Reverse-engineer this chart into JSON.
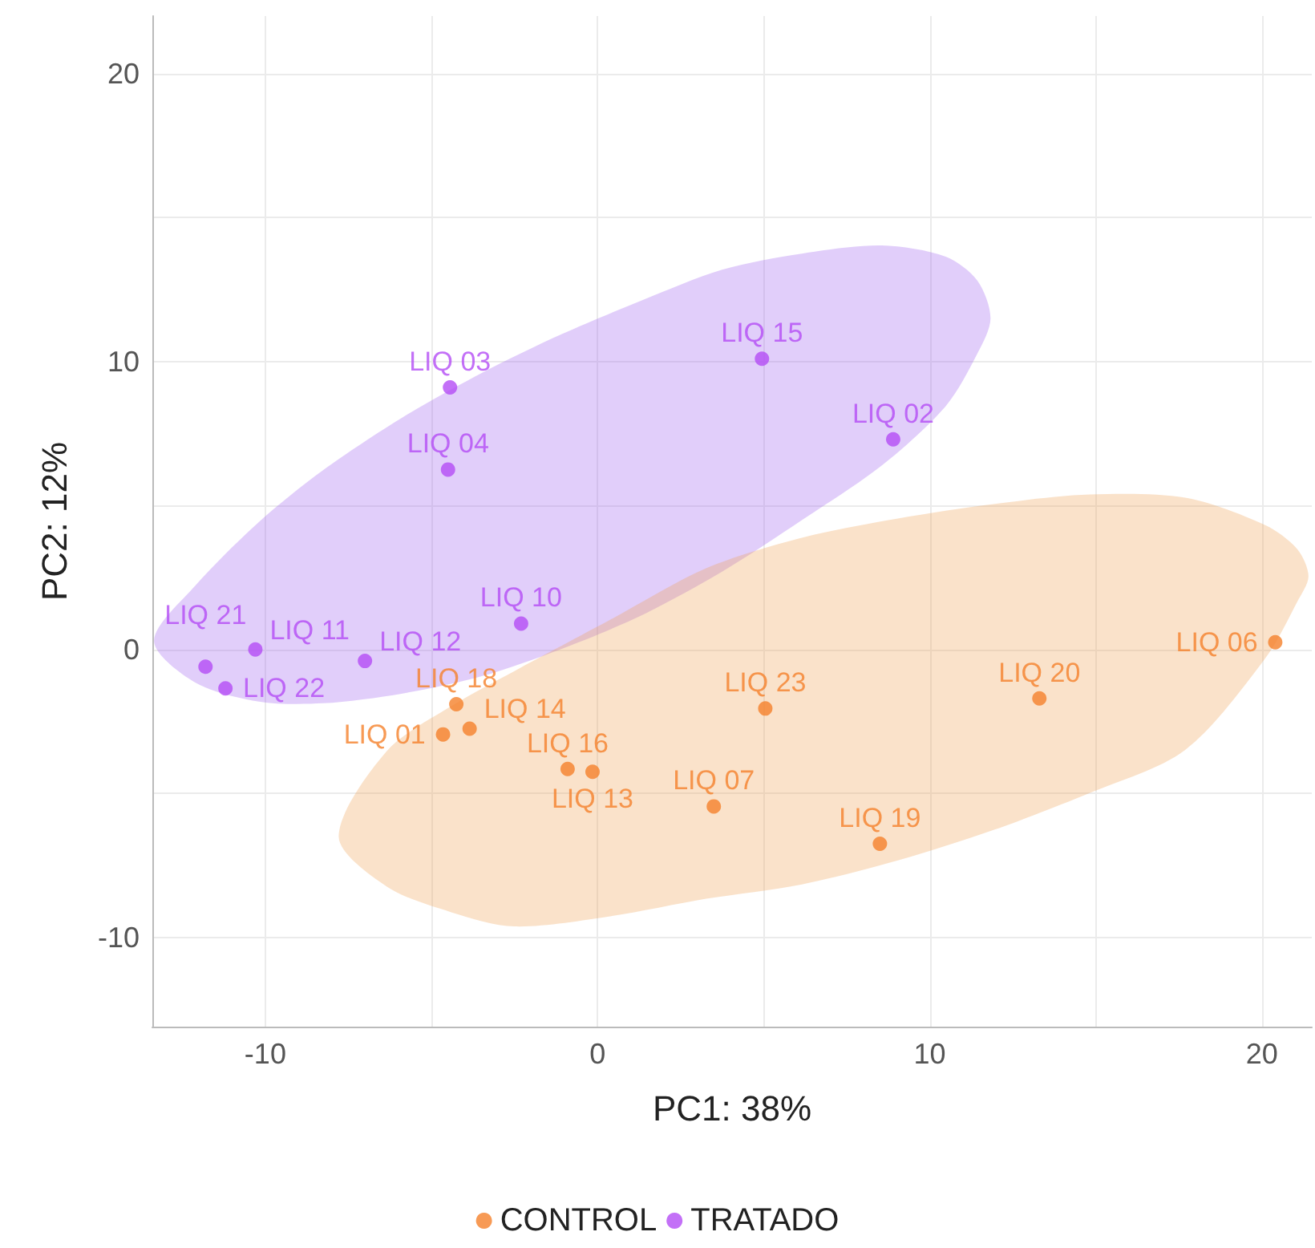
{
  "chart_data": {
    "type": "scatter",
    "xlabel": "PC1: 38%",
    "ylabel": "PC2: 12%",
    "xlim": [
      -13.4,
      21.5
    ],
    "ylim": [
      -13.1,
      22
    ],
    "xticks": [
      -10,
      {
        "value": -5,
        "label": null
      },
      0,
      {
        "value": 5,
        "label": null
      },
      10,
      {
        "value": 15,
        "label": null
      },
      20
    ],
    "yticks": [
      -10,
      {
        "value": -5,
        "label": null
      },
      0,
      {
        "value": 5,
        "label": null
      },
      10,
      {
        "value": 15,
        "label": null
      },
      20
    ],
    "grid": true,
    "legend": "bottom",
    "marker": "circle",
    "series": [
      {
        "type": "area",
        "marker": "none",
        "color": "#9a5cf0",
        "x": [
          -13.35,
          -12.12,
          -10.19,
          -8.27,
          -5.87,
          -3.46,
          -1.06,
          1.35,
          3.75,
          6.15,
          8.56,
          10.48,
          11.44,
          11.83,
          11.44,
          10.48,
          8.56,
          6.15,
          3.75,
          1.35,
          -1.06,
          -3.46,
          -5.87,
          -8.27,
          -10.19,
          -12.12
        ],
        "values": [
          0.3,
          2.2,
          4.43,
          6.22,
          8.06,
          9.62,
          10.96,
          12.13,
          13.19,
          13.75,
          14.03,
          13.64,
          12.8,
          11.5,
          10.29,
          8.45,
          6.39,
          4.49,
          2.7,
          1.2,
          0.03,
          -0.92,
          -1.53,
          -1.87,
          -1.81,
          -1.14
        ]
      },
      {
        "type": "area",
        "marker": "none",
        "color": "#f0a050",
        "x": [
          -7.79,
          -6.35,
          -4.42,
          -2.5,
          0.38,
          3.27,
          6.15,
          9.04,
          11.92,
          14.81,
          17.69,
          20.1,
          21.06,
          21.4,
          21.06,
          20.1,
          17.69,
          14.81,
          11.92,
          9.04,
          6.15,
          3.27,
          0.38,
          -2.5,
          -4.42,
          -6.35
        ],
        "values": [
          -6.5,
          -3.54,
          -1.98,
          -0.75,
          1.03,
          2.82,
          3.88,
          4.55,
          5.05,
          5.38,
          5.27,
          4.32,
          3.49,
          2.54,
          1.65,
          -0.31,
          -3.49,
          -4.99,
          -6.27,
          -7.33,
          -8.16,
          -8.66,
          -9.27,
          -9.62,
          -9.12,
          -8.23
        ]
      },
      {
        "name": "CONTROL",
        "color": "#f5812a",
        "x": [
          -4.25,
          -3.85,
          -4.65,
          -0.9,
          -0.15,
          3.5,
          5.05,
          8.5,
          13.3,
          20.4
        ],
        "values": [
          -1.9,
          -2.75,
          -2.95,
          -4.15,
          -4.25,
          -5.45,
          -2.05,
          -6.75,
          -1.7,
          0.25
        ],
        "value_labels": [
          "LIQ 18",
          "LIQ 14",
          "LIQ 01",
          "LIQ 16",
          "LIQ 13",
          "LIQ 07",
          "LIQ 23",
          "LIQ 19",
          "LIQ 20",
          "LIQ 06"
        ]
      },
      {
        "name": "TRATADO",
        "color": "#b44cf5",
        "x": [
          -4.44,
          -4.5,
          4.95,
          8.9,
          -2.3,
          -11.8,
          -11.2,
          -10.3,
          -7.0
        ],
        "values": [
          9.1,
          6.25,
          10.1,
          7.3,
          0.9,
          -0.6,
          -1.35,
          0.0,
          -0.4
        ],
        "value_labels": [
          "LIQ 03",
          "LIQ 04",
          "LIQ 15",
          "LIQ 02",
          "LIQ 10",
          "LIQ 21",
          "LIQ 22",
          "LIQ 11",
          "LIQ 12"
        ]
      }
    ]
  }
}
